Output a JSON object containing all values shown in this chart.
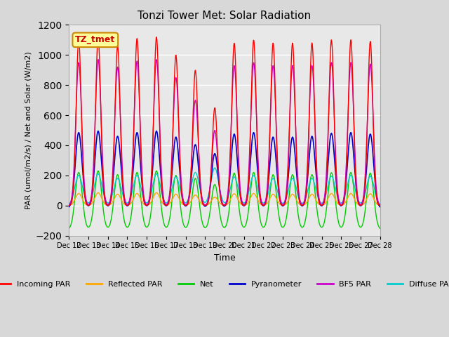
{
  "title": "Tonzi Tower Met: Solar Radiation",
  "xlabel": "Time",
  "ylabel": "PAR (umol/m2/s) / Net and Solar (W/m2)",
  "ylim": [
    -200,
    1200
  ],
  "yticks": [
    -200,
    0,
    200,
    400,
    600,
    800,
    1000,
    1200
  ],
  "tag_label": "TZ_tmet",
  "tag_bg": "#ffff99",
  "tag_border": "#cc8800",
  "tag_text_color": "#cc0000",
  "bg_color": "#e8e8e8",
  "plot_bg": "#f0f0f0",
  "grid_color": "#ffffff",
  "n_days": 16,
  "start_day": 12,
  "series": {
    "incoming_par": {
      "color": "#ff0000",
      "label": "Incoming PAR",
      "peak": 1100,
      "secondary_peak": 900
    },
    "reflected_par": {
      "color": "#ffa500",
      "label": "Reflected PAR",
      "peak": 80
    },
    "net": {
      "color": "#00cc00",
      "label": "Net",
      "peak": 300,
      "trough": -100
    },
    "pyranometer": {
      "color": "#0000cc",
      "label": "Pyranometer",
      "peak": 500,
      "trough": -20
    },
    "bf5_par": {
      "color": "#cc00cc",
      "label": "BF5 PAR",
      "peak": 950
    },
    "diffuse_par": {
      "color": "#00cccc",
      "label": "Diffuse PAR",
      "peak": 250
    }
  },
  "legend": {
    "colors": [
      "#ff0000",
      "#ffa500",
      "#00cc00",
      "#0000cc",
      "#cc00cc",
      "#00cccc"
    ],
    "labels": [
      "Incoming PAR",
      "Reflected PAR",
      "Net",
      "Pyranometer",
      "BF5 PAR",
      "Diffuse PAR"
    ],
    "linestyles": [
      "-",
      "-",
      "-",
      "-",
      "-",
      "-"
    ]
  }
}
